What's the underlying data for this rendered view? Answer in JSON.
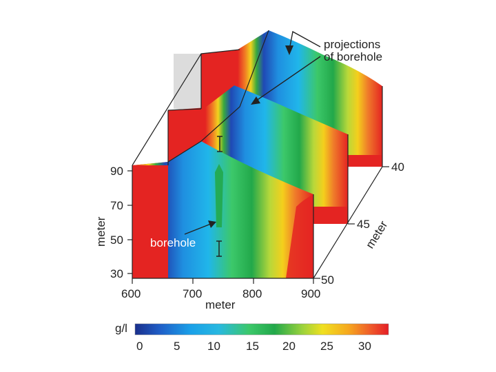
{
  "figure": {
    "left_axis": {
      "label": "meter",
      "ticks": [
        "90",
        "70",
        "50",
        "30"
      ]
    },
    "bottom_axis": {
      "label": "meter",
      "ticks": [
        "600",
        "700",
        "800",
        "900"
      ]
    },
    "depth_axis": {
      "label": "meter",
      "ticks": [
        "40",
        "45",
        "50"
      ]
    },
    "annotations": {
      "projections_line1": "projections",
      "projections_line2": "of borehole",
      "borehole": "borehole"
    },
    "colorbar": {
      "unit": "g/l",
      "ticks": [
        "0",
        "5",
        "10",
        "15",
        "20",
        "25",
        "30"
      ],
      "colors": [
        "#1a2f8c",
        "#1f5fc8",
        "#1aa0e8",
        "#28b8e0",
        "#3cc86a",
        "#22a84a",
        "#9ad23c",
        "#f0e020",
        "#f6a91e",
        "#ef5a2a",
        "#e41e26"
      ]
    },
    "colors": {
      "salt_high": "#e42422",
      "slab_side": "#dcdcdc",
      "outline": "#222222"
    }
  }
}
